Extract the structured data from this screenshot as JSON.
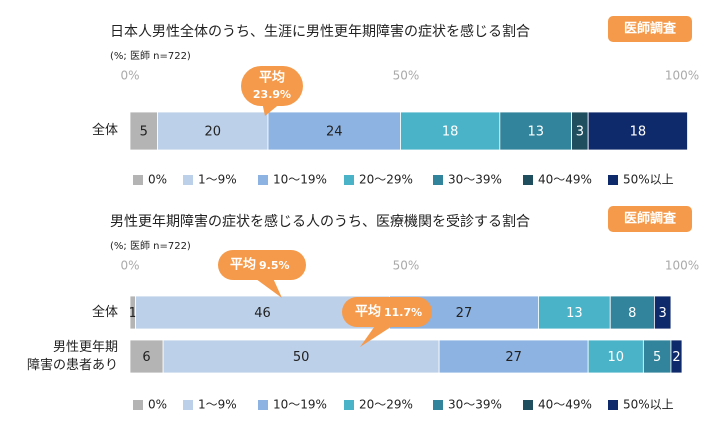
{
  "chart_data": [
    {
      "type": "stacked-bar-horizontal",
      "title": "日本人男性全体のうち、生涯に男性更年期障害の症状を感じる割合",
      "badge": "医師調査",
      "subtitle": "(%; 医師 n=722)",
      "categories": [
        "全体"
      ],
      "series": [
        {
          "name": "0%",
          "color": "#b4b4b4",
          "values": [
            5
          ]
        },
        {
          "name": "1～9%",
          "color": "#bdd0e9",
          "values": [
            20
          ]
        },
        {
          "name": "10～19%",
          "color": "#8db3e2",
          "values": [
            24
          ]
        },
        {
          "name": "20～29%",
          "color": "#4bb3c8",
          "values": [
            18
          ]
        },
        {
          "name": "30～39%",
          "color": "#31849b",
          "values": [
            13
          ]
        },
        {
          "name": "40～49%",
          "color": "#1f4e5f",
          "values": [
            3
          ]
        },
        {
          "name": "50%以上",
          "color": "#0f2a6b",
          "values": [
            18
          ]
        }
      ],
      "xlim": [
        0,
        100
      ],
      "xticks": [
        {
          "value": 0,
          "label": "0%"
        },
        {
          "value": 50,
          "label": "50%"
        },
        {
          "value": 100,
          "label": "100%"
        }
      ],
      "annotations": [
        {
          "text": "平均",
          "value_label": "23.9%"
        }
      ],
      "legend": "bottom"
    },
    {
      "type": "stacked-bar-horizontal",
      "title": "男性更年期障害の症状を感じる人のうち、医療機関を受診する割合",
      "badge": "医師調査",
      "subtitle": "(%; 医師 n=722)",
      "categories": [
        "全体",
        "男性更年期\n障害の患者あり"
      ],
      "series": [
        {
          "name": "0%",
          "color": "#b4b4b4",
          "values": [
            1,
            6
          ]
        },
        {
          "name": "1～9%",
          "color": "#bdd0e9",
          "values": [
            46,
            50
          ]
        },
        {
          "name": "10～19%",
          "color": "#8db3e2",
          "values": [
            27,
            27
          ]
        },
        {
          "name": "20～29%",
          "color": "#4bb3c8",
          "values": [
            13,
            10
          ]
        },
        {
          "name": "30～39%",
          "color": "#31849b",
          "values": [
            8,
            5
          ]
        },
        {
          "name": "40～49%",
          "color": "#1f4e5f",
          "values": [
            0,
            0
          ]
        },
        {
          "name": "50%以上",
          "color": "#0f2a6b",
          "values": [
            3,
            2
          ]
        }
      ],
      "xlim": [
        0,
        100
      ],
      "xticks": [
        {
          "value": 0,
          "label": "0%"
        },
        {
          "value": 50,
          "label": "50%"
        },
        {
          "value": 100,
          "label": "100%"
        }
      ],
      "annotations": [
        {
          "text": "平均",
          "value_label": "9.5%"
        },
        {
          "text": "平均",
          "value_label": "11.7%"
        }
      ],
      "legend": "bottom"
    }
  ]
}
